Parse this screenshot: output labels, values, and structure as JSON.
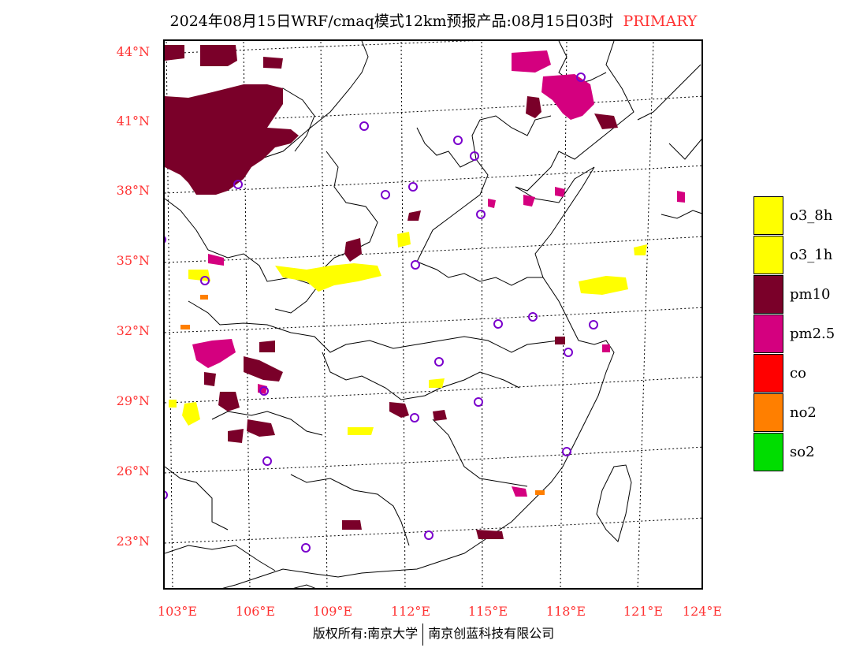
{
  "title": {
    "main": "2024年08月15日WRF/cmaq模式12km预报产品:08月15日03时",
    "tag": "PRIMARY"
  },
  "axes": {
    "lat_labels": [
      "44°N",
      "41°N",
      "38°N",
      "35°N",
      "32°N",
      "29°N",
      "26°N",
      "23°N"
    ],
    "lon_labels": [
      "103°E",
      "106°E",
      "109°E",
      "112°E",
      "115°E",
      "118°E",
      "121°E",
      "124°E"
    ]
  },
  "legend": [
    {
      "name": "o3_8h",
      "color": "#ffff00"
    },
    {
      "name": "o3_1h",
      "color": "#ffff00"
    },
    {
      "name": "pm10",
      "color": "#7a0029"
    },
    {
      "name": "pm2.5",
      "color": "#d4007f"
    },
    {
      "name": "co",
      "color": "#ff0000"
    },
    {
      "name": "no2",
      "color": "#ff7f00"
    },
    {
      "name": "so2",
      "color": "#00dd00"
    }
  ],
  "colors": {
    "label_red": "#ff3333",
    "station_circle": "#7a00cc"
  },
  "footer": {
    "left": "版权所有:南京大学",
    "right": "南京创蓝科技有限公司"
  }
}
